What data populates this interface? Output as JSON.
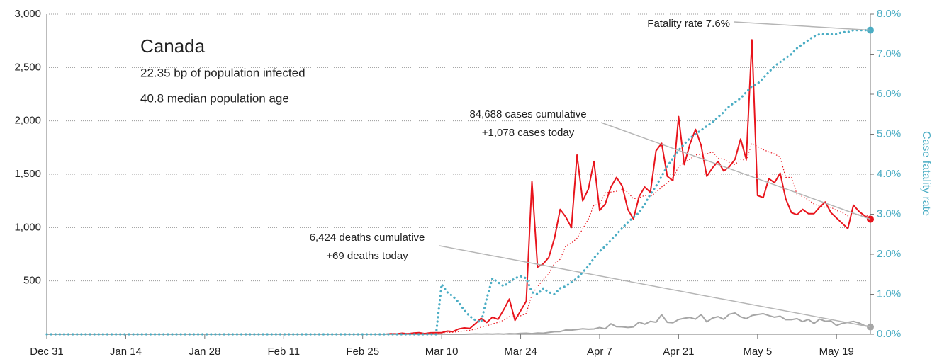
{
  "chart_data": {
    "type": "line",
    "title": "Canada",
    "subtitle": [
      "22.35 bp of population infected",
      "40.8 median population age"
    ],
    "y2_label": "Case fatality rate",
    "categories": [
      "Dec 31",
      "Jan 1",
      "Jan 2",
      "Jan 3",
      "Jan 4",
      "Jan 5",
      "Jan 6",
      "Jan 7",
      "Jan 8",
      "Jan 9",
      "Jan 10",
      "Jan 11",
      "Jan 12",
      "Jan 13",
      "Jan 14",
      "Jan 15",
      "Jan 16",
      "Jan 17",
      "Jan 18",
      "Jan 19",
      "Jan 20",
      "Jan 21",
      "Jan 22",
      "Jan 23",
      "Jan 24",
      "Jan 25",
      "Jan 26",
      "Jan 27",
      "Jan 28",
      "Jan 29",
      "Jan 30",
      "Jan 31",
      "Feb 1",
      "Feb 2",
      "Feb 3",
      "Feb 4",
      "Feb 5",
      "Feb 6",
      "Feb 7",
      "Feb 8",
      "Feb 9",
      "Feb 10",
      "Feb 11",
      "Feb 12",
      "Feb 13",
      "Feb 14",
      "Feb 15",
      "Feb 16",
      "Feb 17",
      "Feb 18",
      "Feb 19",
      "Feb 20",
      "Feb 21",
      "Feb 22",
      "Feb 23",
      "Feb 24",
      "Feb 25",
      "Feb 26",
      "Feb 27",
      "Feb 28",
      "Feb 29",
      "Mar 1",
      "Mar 2",
      "Mar 3",
      "Mar 4",
      "Mar 5",
      "Mar 6",
      "Mar 7",
      "Mar 8",
      "Mar 9",
      "Mar 10",
      "Mar 11",
      "Mar 12",
      "Mar 13",
      "Mar 14",
      "Mar 15",
      "Mar 16",
      "Mar 17",
      "Mar 18",
      "Mar 19",
      "Mar 20",
      "Mar 21",
      "Mar 22",
      "Mar 23",
      "Mar 24",
      "Mar 25",
      "Mar 26",
      "Mar 27",
      "Mar 28",
      "Mar 29",
      "Mar 30",
      "Mar 31",
      "Apr 1",
      "Apr 2",
      "Apr 3",
      "Apr 4",
      "Apr 5",
      "Apr 6",
      "Apr 7",
      "Apr 8",
      "Apr 9",
      "Apr 10",
      "Apr 11",
      "Apr 12",
      "Apr 13",
      "Apr 14",
      "Apr 15",
      "Apr 16",
      "Apr 17",
      "Apr 18",
      "Apr 19",
      "Apr 20",
      "Apr 21",
      "Apr 22",
      "Apr 23",
      "Apr 24",
      "Apr 25",
      "Apr 26",
      "Apr 27",
      "Apr 28",
      "Apr 29",
      "Apr 30",
      "May 1",
      "May 2",
      "May 3",
      "May 4",
      "May 5",
      "May 6",
      "May 7",
      "May 8",
      "May 9",
      "May 10",
      "May 11",
      "May 12",
      "May 13",
      "May 14",
      "May 15",
      "May 16",
      "May 17",
      "May 18",
      "May 19",
      "May 20",
      "May 21",
      "May 22",
      "May 23",
      "May 24",
      "May 25"
    ],
    "xticks": [
      "Dec 31",
      "Jan 14",
      "Jan 28",
      "Feb 11",
      "Feb 25",
      "Mar 10",
      "Mar 24",
      "Apr 7",
      "Apr 21",
      "May 5",
      "May 19"
    ],
    "ylim": [
      0,
      3000
    ],
    "yticks": [
      500,
      {
        "value": 1000,
        "label": "1,000"
      },
      {
        "value": 1500,
        "label": "1,500"
      },
      {
        "value": 2000,
        "label": "2,000"
      },
      {
        "value": 2500,
        "label": "2,500"
      },
      {
        "value": 3000,
        "label": "3,000"
      }
    ],
    "y2lim": [
      0,
      8
    ],
    "y2ticks": [
      {
        "value": 0,
        "label": "0.0%"
      },
      {
        "value": 1,
        "label": "1.0%"
      },
      {
        "value": 2,
        "label": "2.0%"
      },
      {
        "value": 3,
        "label": "3.0%"
      },
      {
        "value": 4,
        "label": "4.0%"
      },
      {
        "value": 5,
        "label": "5.0%"
      },
      {
        "value": 6,
        "label": "6.0%"
      },
      {
        "value": 7,
        "label": "7.0%"
      },
      {
        "value": 8,
        "label": "8.0%"
      }
    ],
    "grid": true,
    "series": [
      {
        "color": "#e8141c",
        "style": "solid",
        "end_marker": true,
        "values": [
          0,
          0,
          0,
          0,
          0,
          0,
          0,
          0,
          0,
          0,
          0,
          0,
          0,
          0,
          0,
          0,
          0,
          0,
          0,
          0,
          0,
          0,
          0,
          0,
          0,
          0,
          0,
          0,
          0,
          0,
          0,
          0,
          0,
          0,
          0,
          0,
          0,
          0,
          0,
          0,
          0,
          0,
          0,
          0,
          0,
          0,
          0,
          0,
          0,
          0,
          0,
          0,
          0,
          0,
          0,
          0,
          0,
          0,
          0,
          0,
          0,
          5,
          3,
          10,
          4,
          12,
          15,
          6,
          14,
          15,
          15,
          30,
          25,
          50,
          60,
          55,
          100,
          150,
          110,
          160,
          140,
          230,
          330,
          130,
          220,
          310,
          1430,
          630,
          660,
          720,
          900,
          1170,
          1100,
          1000,
          1680,
          1250,
          1360,
          1620,
          1160,
          1220,
          1380,
          1470,
          1390,
          1170,
          1080,
          1290,
          1380,
          1330,
          1720,
          1790,
          1480,
          1440,
          2040,
          1590,
          1780,
          1920,
          1770,
          1480,
          1560,
          1620,
          1530,
          1570,
          1640,
          1830,
          1640,
          2760,
          1300,
          1280,
          1460,
          1420,
          1510,
          1270,
          1140,
          1120,
          1170,
          1130,
          1130,
          1190,
          1240,
          1140,
          1090,
          1040,
          990,
          1210,
          1150,
          1110,
          1078
        ]
      },
      {
        "color": "#e8141c",
        "style": "dotted",
        "end_marker": false,
        "values": [
          0,
          0,
          0,
          0,
          0,
          0,
          0,
          0,
          0,
          0,
          0,
          0,
          0,
          0,
          0,
          0,
          0,
          0,
          0,
          0,
          0,
          0,
          0,
          0,
          0,
          0,
          0,
          0,
          0,
          0,
          0,
          0,
          0,
          0,
          0,
          0,
          0,
          0,
          0,
          0,
          0,
          0,
          0,
          0,
          0,
          0,
          0,
          0,
          0,
          0,
          0,
          0,
          0,
          0,
          0,
          0,
          0,
          0,
          0,
          0,
          0,
          3,
          4,
          5,
          6,
          7,
          9,
          9,
          10,
          11,
          13,
          17,
          19,
          25,
          31,
          37,
          50,
          67,
          79,
          98,
          111,
          132,
          165,
          163,
          173,
          195,
          373,
          447,
          511,
          567,
          663,
          703,
          826,
          854,
          900,
          987,
          1080,
          1211,
          1213,
          1326,
          1333,
          1340,
          1360,
          1330,
          1270,
          1280,
          1300,
          1290,
          1330,
          1380,
          1420,
          1470,
          1570,
          1610,
          1640,
          1680,
          1690,
          1690,
          1710,
          1650,
          1640,
          1610,
          1590,
          1640,
          1630,
          1790,
          1760,
          1730,
          1710,
          1690,
          1660,
          1470,
          1470,
          1310,
          1290,
          1260,
          1220,
          1200,
          1190,
          1190,
          1160,
          1140,
          1110,
          1130,
          1120,
          1110,
          1110
        ]
      },
      {
        "color": "#a6a6a6",
        "style": "solid",
        "end_marker": true,
        "values": [
          0,
          0,
          0,
          0,
          0,
          0,
          0,
          0,
          0,
          0,
          0,
          0,
          0,
          0,
          0,
          0,
          0,
          0,
          0,
          0,
          0,
          0,
          0,
          0,
          0,
          0,
          0,
          0,
          0,
          0,
          0,
          0,
          0,
          0,
          0,
          0,
          0,
          0,
          0,
          0,
          0,
          0,
          0,
          0,
          0,
          0,
          0,
          0,
          0,
          0,
          0,
          0,
          0,
          0,
          0,
          0,
          0,
          0,
          0,
          0,
          0,
          0,
          0,
          0,
          0,
          0,
          0,
          0,
          1,
          0,
          1,
          0,
          0,
          0,
          0,
          1,
          3,
          1,
          3,
          2,
          4,
          2,
          6,
          4,
          8,
          10,
          6,
          11,
          10,
          17,
          24,
          25,
          40,
          39,
          45,
          52,
          47,
          50,
          63,
          51,
          98,
          71,
          70,
          64,
          69,
          114,
          94,
          121,
          113,
          184,
          112,
          108,
          139,
          150,
          157,
          142,
          185,
          116,
          152,
          165,
          141,
          188,
          199,
          164,
          146,
          176,
          185,
          193,
          175,
          160,
          169,
          137,
          137,
          147,
          119,
          139,
          101,
          142,
          122,
          126,
          82,
          102,
          112,
          121,
          106,
          80,
          69
        ]
      },
      {
        "color": "#4badc4",
        "style": "dotted-bold",
        "end_marker": true,
        "axis": "y2",
        "values": [
          0,
          0,
          0,
          0,
          0,
          0,
          0,
          0,
          0,
          0,
          0,
          0,
          0,
          0,
          0,
          0,
          0,
          0,
          0,
          0,
          0,
          0,
          0,
          0,
          0,
          0,
          0,
          0,
          0,
          0,
          0,
          0,
          0,
          0,
          0,
          0,
          0,
          0,
          0,
          0,
          0,
          0,
          0,
          0,
          0,
          0,
          0,
          0,
          0,
          0,
          0,
          0,
          0,
          0,
          0,
          0,
          0,
          0,
          0,
          0,
          0,
          0,
          0,
          0,
          0,
          0,
          0,
          0,
          0,
          0,
          1.25,
          1.05,
          0.95,
          0.8,
          0.6,
          0.45,
          0.35,
          0.3,
          0.9,
          1.4,
          1.3,
          1.2,
          1.3,
          1.4,
          1.45,
          1.4,
          1.05,
          1.0,
          1.15,
          1.05,
          1.0,
          1.15,
          1.2,
          1.3,
          1.4,
          1.55,
          1.7,
          1.9,
          2.07,
          2.2,
          2.35,
          2.5,
          2.65,
          2.8,
          2.92,
          3.04,
          3.25,
          3.5,
          3.7,
          3.95,
          4.2,
          4.4,
          4.6,
          4.75,
          4.9,
          5.0,
          5.1,
          5.2,
          5.3,
          5.43,
          5.55,
          5.7,
          5.8,
          5.9,
          6.05,
          6.2,
          6.26,
          6.4,
          6.55,
          6.7,
          6.8,
          6.9,
          7.0,
          7.15,
          7.25,
          7.35,
          7.45,
          7.5,
          7.5,
          7.5,
          7.5,
          7.55,
          7.55,
          7.6,
          7.6,
          7.6,
          7.6
        ]
      }
    ],
    "annotations": [
      {
        "lines": [
          "84,688 cases cumulative",
          "+1,078 cases today"
        ]
      },
      {
        "lines": [
          "6,424 deaths cumulative",
          "+69 deaths today"
        ]
      },
      {
        "lines": [
          "Fatality rate 7.6%"
        ]
      }
    ]
  }
}
